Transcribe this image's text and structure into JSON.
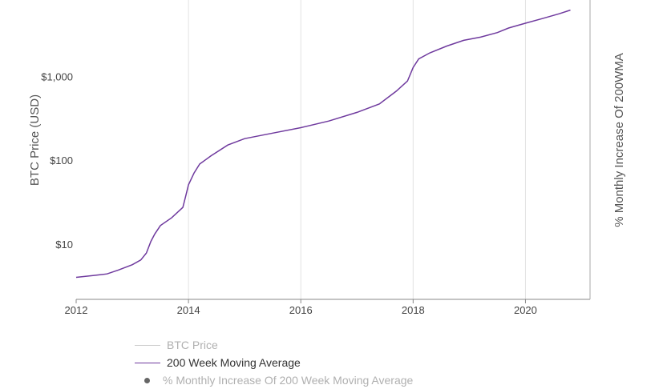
{
  "chart_data": {
    "type": "line",
    "y_scale": "log",
    "ylabel": "BTC Price (USD)",
    "y2label": "% Monthly Increase Of 200WMA",
    "y_ticks": [
      {
        "value": 10,
        "label": "$10"
      },
      {
        "value": 100,
        "label": "$100"
      },
      {
        "value": 1000,
        "label": "$1,000"
      }
    ],
    "x_ticks": [
      2012,
      2014,
      2016,
      2018,
      2020
    ],
    "xlim": [
      2012,
      2021.15
    ],
    "ylim_log10": [
      0.35,
      3.92
    ],
    "grid": "vertical",
    "series": [
      {
        "name": "BTC Price",
        "color": "#cccccc",
        "visible": false,
        "points": []
      },
      {
        "name": "200 Week Moving Average",
        "color": "#6f3a9e",
        "points": [
          [
            2012.0,
            4.1
          ],
          [
            2012.3,
            4.3
          ],
          [
            2012.55,
            4.5
          ],
          [
            2012.75,
            5.0
          ],
          [
            2013.0,
            5.8
          ],
          [
            2013.15,
            6.6
          ],
          [
            2013.25,
            8.0
          ],
          [
            2013.33,
            11
          ],
          [
            2013.4,
            13.5
          ],
          [
            2013.5,
            17
          ],
          [
            2013.7,
            21
          ],
          [
            2013.9,
            28
          ],
          [
            2013.95,
            38
          ],
          [
            2014.0,
            52
          ],
          [
            2014.1,
            72
          ],
          [
            2014.2,
            92
          ],
          [
            2014.4,
            115
          ],
          [
            2014.7,
            155
          ],
          [
            2015.0,
            185
          ],
          [
            2015.5,
            215
          ],
          [
            2016.0,
            250
          ],
          [
            2016.5,
            300
          ],
          [
            2017.0,
            380
          ],
          [
            2017.4,
            480
          ],
          [
            2017.7,
            680
          ],
          [
            2017.9,
            900
          ],
          [
            2018.0,
            1300
          ],
          [
            2018.1,
            1650
          ],
          [
            2018.3,
            1950
          ],
          [
            2018.6,
            2350
          ],
          [
            2018.9,
            2750
          ],
          [
            2019.2,
            3000
          ],
          [
            2019.5,
            3400
          ],
          [
            2019.7,
            3850
          ],
          [
            2020.0,
            4400
          ],
          [
            2020.3,
            5000
          ],
          [
            2020.6,
            5700
          ],
          [
            2020.8,
            6300
          ]
        ]
      }
    ]
  },
  "legend": {
    "items": [
      {
        "label": "BTC Price",
        "color": "#cccccc"
      },
      {
        "label": "200 Week Moving Average",
        "color": "#6f3a9e"
      },
      {
        "label": "% Monthly Increase Of 200 Week Moving Average",
        "color": "#888888"
      }
    ]
  }
}
